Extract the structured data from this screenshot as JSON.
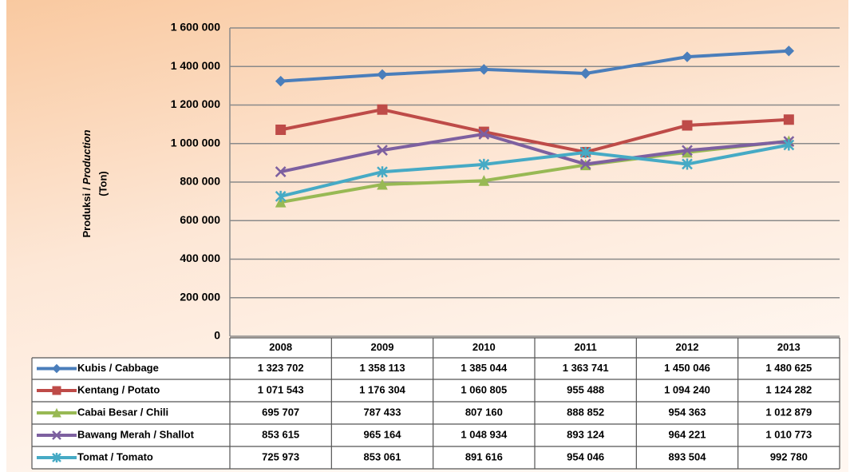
{
  "chart_data": {
    "type": "line",
    "ylabel_parts": [
      "Produksi / ",
      "Production"
    ],
    "ylabel_unit": "(Ton)",
    "categories": [
      "2008",
      "2009",
      "2010",
      "2011",
      "2012",
      "2013"
    ],
    "ylim": [
      0,
      1600000
    ],
    "yticks": [
      0,
      {
        "value": 200000,
        "label": "200 000"
      },
      {
        "value": 400000,
        "label": "400 000"
      },
      {
        "value": 600000,
        "label": "600 000"
      },
      {
        "value": 800000,
        "label": "800 000"
      },
      {
        "value": 1000000,
        "label": "1 000 000"
      },
      {
        "value": 1200000,
        "label": "1 200 000"
      },
      {
        "value": 1400000,
        "label": "1 400 000"
      },
      {
        "value": 1600000,
        "label": "1 600 000"
      }
    ],
    "grid": true,
    "series": [
      {
        "name": "Kubis / Cabbage",
        "color": "#4a7ebb",
        "marker": "diamond",
        "values": [
          1323702,
          1358113,
          1385044,
          1363741,
          1450046,
          1480625
        ],
        "value_labels": [
          "1 323 702",
          "1 358 113",
          "1 385 044",
          "1 363 741",
          "1 450 046",
          "1 480 625"
        ]
      },
      {
        "name": "Kentang / Potato",
        "color": "#be4b48",
        "marker": "square",
        "values": [
          1071543,
          1176304,
          1060805,
          955488,
          1094240,
          1124282
        ],
        "value_labels": [
          "1 071 543",
          "1 176 304",
          "1 060 805",
          "955 488",
          "1 094 240",
          "1 124 282"
        ]
      },
      {
        "name": "Cabai Besar / Chili",
        "color": "#98b954",
        "marker": "triangle",
        "values": [
          695707,
          787433,
          807160,
          888852,
          954363,
          1012879
        ],
        "value_labels": [
          "695 707",
          "787 433",
          "807 160",
          "888 852",
          "954 363",
          "1 012 879"
        ]
      },
      {
        "name": "Bawang Merah / Shallot",
        "color": "#7d60a0",
        "marker": "x",
        "values": [
          853615,
          965164,
          1048934,
          893124,
          964221,
          1010773
        ],
        "value_labels": [
          "853 615",
          "965 164",
          "1 048 934",
          "893 124",
          "964 221",
          "1 010 773"
        ]
      },
      {
        "name": "Tomat / Tomato",
        "color": "#46aac5",
        "marker": "star",
        "values": [
          725973,
          853061,
          891616,
          954046,
          893504,
          992780
        ],
        "value_labels": [
          "725 973",
          "853 061",
          "891 616",
          "954 046",
          "893 504",
          "992 780"
        ]
      }
    ]
  }
}
